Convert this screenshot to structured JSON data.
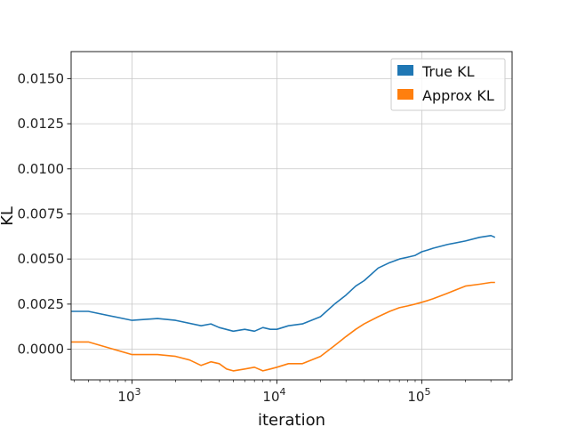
{
  "chart_data": {
    "type": "line",
    "title": "",
    "xlabel": "iteration",
    "ylabel": "KL",
    "xscale": "log",
    "xlim": [
      380,
      420000
    ],
    "ylim": [
      -0.0017,
      0.0165
    ],
    "xticks": [
      {
        "base": "10",
        "exp": "3",
        "value": 1000
      },
      {
        "base": "10",
        "exp": "4",
        "value": 10000
      },
      {
        "base": "10",
        "exp": "5",
        "value": 100000
      }
    ],
    "yticks": [
      "0.0000",
      "0.0025",
      "0.0050",
      "0.0075",
      "0.0100",
      "0.0125",
      "0.0150"
    ],
    "ytick_values": [
      0,
      0.0025,
      0.005,
      0.0075,
      0.01,
      0.0125,
      0.015
    ],
    "grid": true,
    "legend_position": "upper right",
    "series": [
      {
        "name": "True KL",
        "color": "#1f77b4",
        "x": [
          380,
          500,
          1000,
          1500,
          2000,
          3000,
          3500,
          4000,
          5000,
          6000,
          7000,
          8000,
          9000,
          10000,
          12000,
          15000,
          20000,
          25000,
          30000,
          35000,
          40000,
          50000,
          60000,
          70000,
          80000,
          90000,
          100000,
          110000,
          120000,
          150000,
          200000,
          250000,
          300000,
          320000
        ],
        "y": [
          0.0021,
          0.0021,
          0.0016,
          0.0017,
          0.0016,
          0.0013,
          0.0014,
          0.0012,
          0.001,
          0.0011,
          0.001,
          0.0012,
          0.0011,
          0.0011,
          0.0013,
          0.0014,
          0.0018,
          0.0025,
          0.003,
          0.0035,
          0.0038,
          0.0045,
          0.0048,
          0.005,
          0.0051,
          0.0052,
          0.0054,
          0.0055,
          0.0056,
          0.0058,
          0.006,
          0.0062,
          0.0063,
          0.0062
        ]
      },
      {
        "name": "Approx KL",
        "color": "#ff7f0e",
        "x": [
          380,
          500,
          1000,
          1500,
          2000,
          2500,
          3000,
          3500,
          4000,
          4500,
          5000,
          6000,
          7000,
          8000,
          9000,
          10000,
          12000,
          15000,
          20000,
          25000,
          30000,
          35000,
          40000,
          50000,
          60000,
          70000,
          80000,
          90000,
          100000,
          110000,
          120000,
          150000,
          200000,
          250000,
          300000,
          320000
        ],
        "y": [
          0.0004,
          0.0004,
          -0.0003,
          -0.0003,
          -0.0004,
          -0.0006,
          -0.0009,
          -0.0007,
          -0.0008,
          -0.0011,
          -0.0012,
          -0.0011,
          -0.001,
          -0.0012,
          -0.0011,
          -0.001,
          -0.0008,
          -0.0008,
          -0.0004,
          0.0002,
          0.0007,
          0.0011,
          0.0014,
          0.0018,
          0.0021,
          0.0023,
          0.0024,
          0.0025,
          0.0026,
          0.0027,
          0.0028,
          0.0031,
          0.0035,
          0.0036,
          0.0037,
          0.0037
        ]
      }
    ]
  }
}
